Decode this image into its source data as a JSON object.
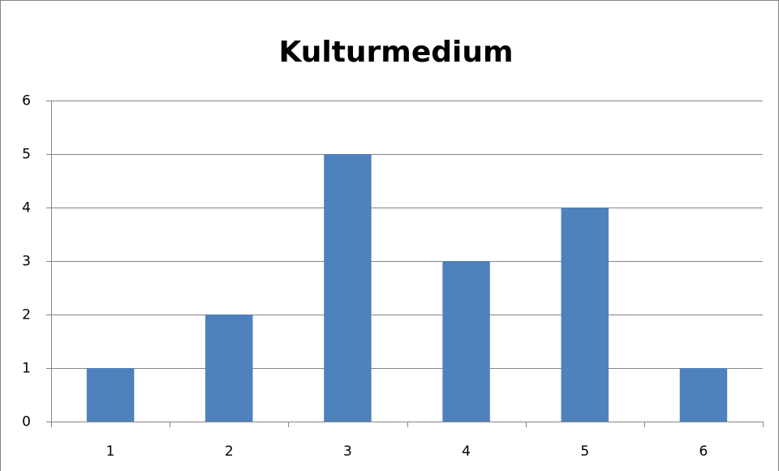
{
  "chart_data": {
    "type": "bar",
    "title": "Kulturmedium",
    "categories": [
      "1",
      "2",
      "3",
      "4",
      "5",
      "6"
    ],
    "values": [
      1,
      2,
      5,
      3,
      4,
      1
    ],
    "color": "#4f81bd",
    "ylim": [
      0,
      6
    ],
    "yticks": [
      0,
      1,
      2,
      3,
      4,
      5,
      6
    ],
    "grid": true
  }
}
